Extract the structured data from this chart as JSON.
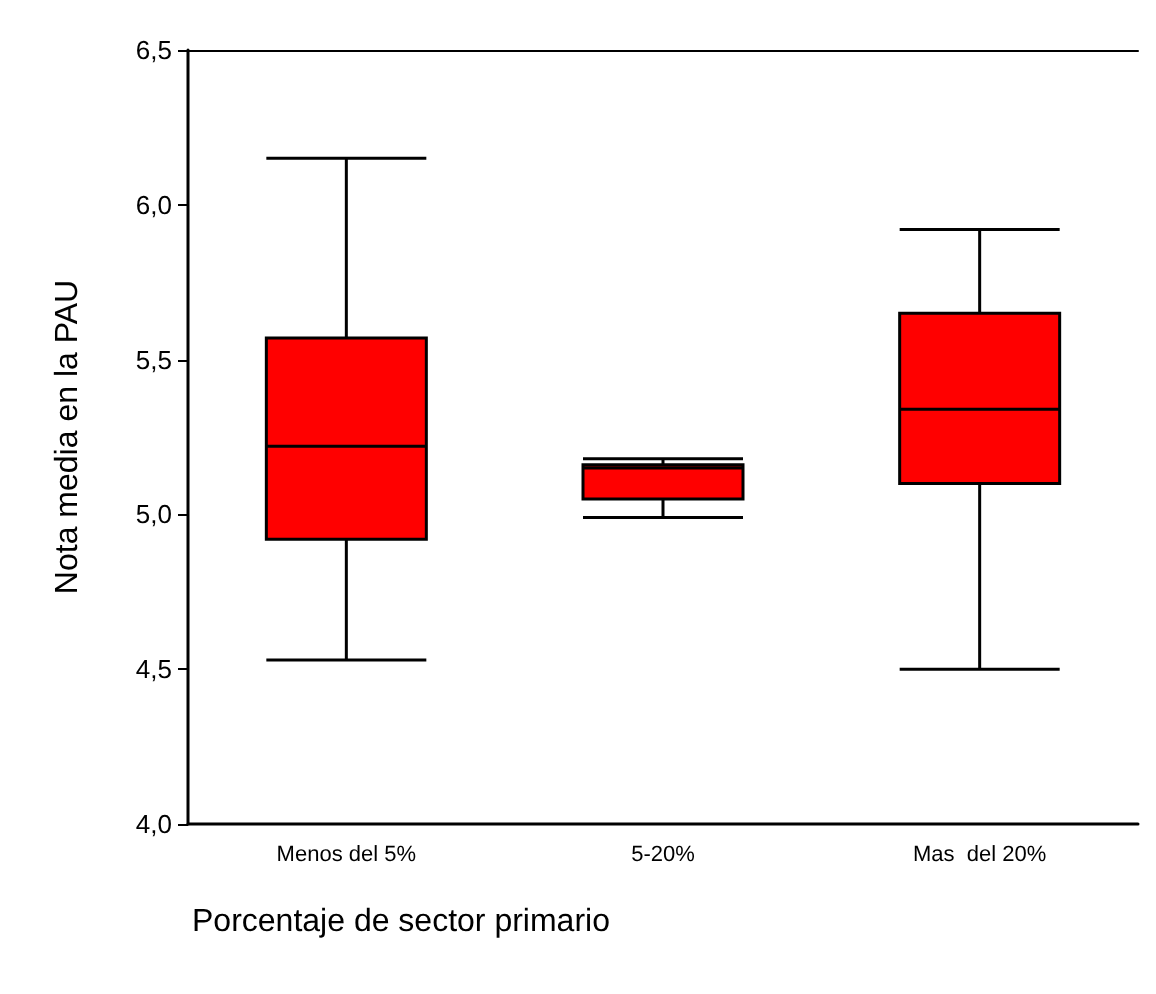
{
  "chart_data": {
    "type": "box",
    "xlabel": "Porcentaje de sector primario",
    "ylabel": "Nota media en la PAU",
    "categories": [
      "Menos del 5%",
      "5-20%",
      "Mas  del 20%"
    ],
    "color": "#ff0000",
    "boxes": [
      {
        "low": 4.53,
        "q1": 4.92,
        "median": 5.22,
        "q3": 5.57,
        "high": 6.15
      },
      {
        "low": 4.99,
        "q1": 5.05,
        "median": 5.15,
        "q3": 5.16,
        "high": 5.18
      },
      {
        "low": 4.5,
        "q1": 5.1,
        "median": 5.34,
        "q3": 5.65,
        "high": 5.92
      }
    ],
    "ylim": [
      4.0,
      6.5
    ],
    "yticks": [
      {
        "value": 4.0,
        "label": "4,0"
      },
      {
        "value": 4.5,
        "label": "4,5"
      },
      {
        "value": 5.0,
        "label": "5,0"
      },
      {
        "value": 5.5,
        "label": "5,5"
      },
      {
        "value": 6.0,
        "label": "6,0"
      },
      {
        "value": 6.5,
        "label": "6,5"
      }
    ],
    "grid": false
  }
}
